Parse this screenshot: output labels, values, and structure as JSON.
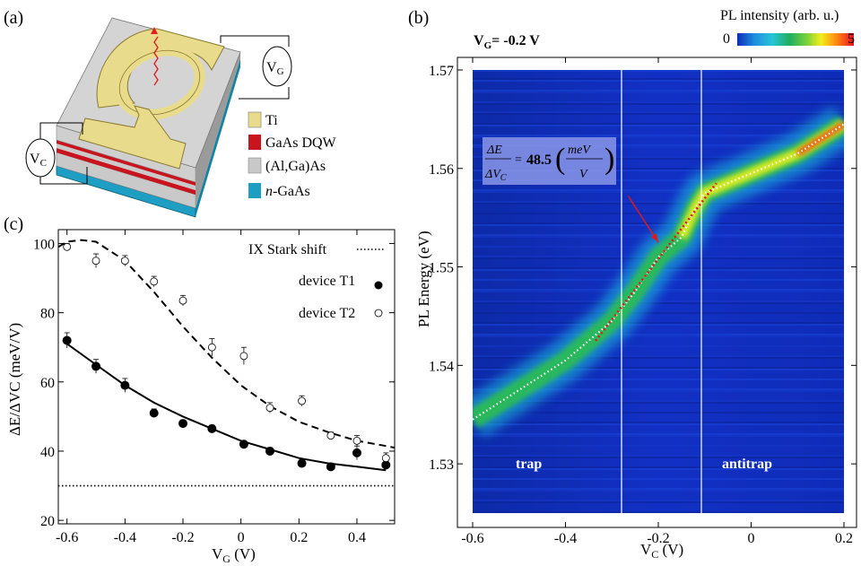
{
  "panel_a": {
    "label": "(a)",
    "vg_label": "V",
    "vg_sub": "G",
    "vc_label": "V",
    "vc_sub": "C",
    "legend": [
      {
        "name": "Ti",
        "italic_prefix": "",
        "color": "#e8dc8c"
      },
      {
        "name": "GaAs DQW",
        "italic_prefix": "",
        "color": "#c8141e"
      },
      {
        "name": "(Al,Ga)As",
        "italic_prefix": "",
        "color": "#c8c8c8"
      },
      {
        "name": "-GaAs",
        "italic_prefix": "n",
        "color": "#1e9ec3"
      }
    ]
  },
  "panel_b": {
    "label": "(b)",
    "vg_note": "V",
    "vg_note_sub": "G",
    "vg_note_value": "= -0.2 V",
    "colorbar_title": "PL intensity (arb. u.)",
    "colorbar_min": "0",
    "colorbar_max": "5",
    "region_trap": "trap",
    "region_antitrap": "antitrap",
    "annotation_value": "48.5"
  },
  "panel_c": {
    "label": "(c)",
    "legend_stark": "IX Stark shift",
    "legend_t1": "device T1",
    "legend_t2": "device T2"
  },
  "chart_data": [
    {
      "type": "scatter",
      "panel": "(c)",
      "xlabel": "V_G (V)",
      "ylabel": "ΔE/ΔVC (meV/V)",
      "xlim": [
        -0.63,
        0.53
      ],
      "ylim": [
        19,
        104
      ],
      "xticks": [
        -0.6,
        -0.4,
        -0.2,
        0,
        0.2,
        0.4
      ],
      "xtick_labels": [
        "-0.6",
        "-0.4",
        "-0.2",
        "0",
        "0.2",
        "0.4"
      ],
      "yticks": [
        20,
        40,
        60,
        80,
        100
      ],
      "ytick_labels": [
        "20",
        "40",
        "60",
        "80",
        "100"
      ],
      "series": [
        {
          "name": "device T1",
          "marker": "filled",
          "x": [
            -0.6,
            -0.5,
            -0.4,
            -0.3,
            -0.2,
            -0.1,
            0.01,
            0.1,
            0.21,
            0.31,
            0.4,
            0.5
          ],
          "y": [
            72,
            64.5,
            59,
            51,
            48,
            46.5,
            42,
            40,
            36.5,
            35.5,
            39.5,
            36
          ],
          "err": [
            2.2,
            2,
            2,
            1.2,
            1,
            1,
            1,
            1,
            1,
            1,
            2,
            1
          ]
        },
        {
          "name": "device T2",
          "marker": "open",
          "x": [
            -0.6,
            -0.5,
            -0.4,
            -0.3,
            -0.2,
            -0.1,
            0.01,
            0.1,
            0.21,
            0.31,
            0.4,
            0.5
          ],
          "y": [
            99,
            95,
            95,
            89,
            83.5,
            70,
            67.5,
            52.5,
            54.5,
            44.5,
            43,
            38
          ],
          "err": [
            1,
            2,
            1.5,
            1.5,
            1.5,
            2.5,
            2.5,
            1.5,
            1.5,
            1,
            1.5,
            1.5
          ]
        },
        {
          "name": "device T1 fit",
          "style": "solid",
          "x": [
            -0.6,
            -0.5,
            -0.4,
            -0.3,
            -0.2,
            -0.1,
            0,
            0.1,
            0.2,
            0.3,
            0.4,
            0.45,
            0.5
          ],
          "y": [
            71,
            65,
            59,
            54,
            50,
            46.5,
            43,
            40.5,
            38,
            36.5,
            35.5,
            35,
            34.5
          ]
        },
        {
          "name": "device T2 fit",
          "style": "dashed",
          "x": [
            -0.63,
            -0.6,
            -0.55,
            -0.5,
            -0.4,
            -0.3,
            -0.2,
            -0.1,
            0,
            0.1,
            0.2,
            0.3,
            0.4,
            0.5,
            0.53
          ],
          "y": [
            99,
            100.5,
            101,
            100.5,
            95,
            86,
            76,
            67,
            59,
            53,
            48.5,
            45.5,
            43,
            41.5,
            41
          ]
        },
        {
          "name": "IX Stark shift",
          "style": "dotted",
          "x": [
            -0.63,
            0.53
          ],
          "y": [
            30,
            30
          ]
        }
      ]
    },
    {
      "type": "heatmap",
      "panel": "(b)",
      "xlabel": "V_C (V)",
      "ylabel": "PL Energy (eV)",
      "xlim": [
        -0.6,
        0.2
      ],
      "ylim": [
        1.525,
        1.57
      ],
      "xticks": [
        -0.6,
        -0.4,
        -0.2,
        0,
        0.2
      ],
      "xtick_labels": [
        "-0.6",
        "-0.4",
        "-0.2",
        "0",
        "0.2"
      ],
      "yticks": [
        1.53,
        1.54,
        1.55,
        1.56,
        1.57
      ],
      "ytick_labels": [
        "1.53",
        "1.54",
        "1.55",
        "1.56",
        "1.57"
      ],
      "colorbar_range": [
        0,
        5
      ],
      "peak_line": {
        "x": [
          -0.6,
          -0.5,
          -0.4,
          -0.3,
          -0.25,
          -0.2,
          -0.15,
          -0.12,
          -0.1,
          -0.05,
          0,
          0.1,
          0.2
        ],
        "y": [
          1.5345,
          1.5375,
          1.5405,
          1.5445,
          1.5475,
          1.551,
          1.553,
          1.556,
          1.5575,
          1.5585,
          1.5595,
          1.5615,
          1.5645
        ]
      },
      "vertical_lines_x": [
        -0.28,
        -0.115
      ],
      "stark_fit_line": {
        "x": [
          -0.335,
          -0.075
        ],
        "y": [
          1.5425,
          1.5585
        ]
      },
      "arrow": {
        "from": [
          -0.265,
          1.5572
        ],
        "to": [
          -0.2,
          1.5525
        ]
      }
    }
  ]
}
